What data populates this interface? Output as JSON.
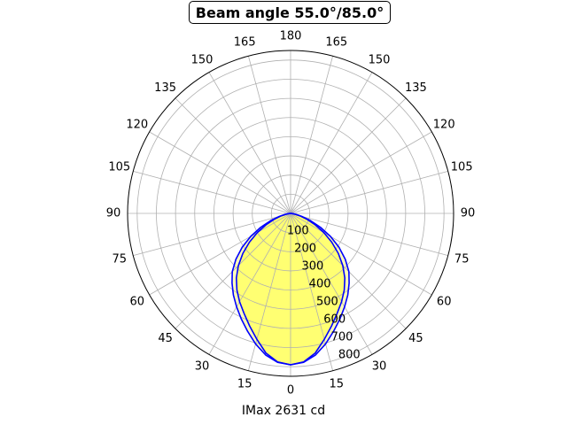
{
  "title": "Beam angle 55.0°/85.0°",
  "xlabel": "IMax 2631 cd",
  "chart_data": {
    "type": "polar",
    "title": "Beam angle 55.0°/85.0°",
    "xlabel": "IMax 2631 cd",
    "angle_unit": "degrees",
    "zero_location": "bottom",
    "angle_labels": [
      "0",
      "15",
      "30",
      "45",
      "60",
      "75",
      "90",
      "105",
      "120",
      "135",
      "150",
      "165",
      "180",
      "165",
      "150",
      "135",
      "120",
      "105",
      "90",
      "75",
      "60",
      "45",
      "30",
      "15"
    ],
    "radial_ticks": [
      100,
      200,
      300,
      400,
      500,
      600,
      700,
      800
    ],
    "rlim": [
      0,
      850
    ],
    "grid": true,
    "series": [
      {
        "color": "#0000ff",
        "fill": "#ffff66",
        "angles": [
          0,
          5,
          10,
          15,
          20,
          25,
          30,
          35,
          40,
          45,
          50,
          55,
          60,
          65,
          70,
          75,
          80,
          85,
          90
        ],
        "values": [
          790,
          778,
          740,
          680,
          625,
          575,
          532,
          488,
          440,
          385,
          325,
          262,
          200,
          142,
          92,
          52,
          22,
          5,
          0
        ]
      },
      {
        "color": "#0000ff",
        "fill": "#ffff66",
        "angles": [
          0,
          5,
          10,
          15,
          20,
          25,
          30,
          35,
          40,
          45,
          50,
          55,
          60,
          65,
          70,
          75,
          80,
          85,
          90
        ],
        "values": [
          790,
          780,
          750,
          705,
          655,
          608,
          563,
          520,
          475,
          430,
          372,
          308,
          240,
          172,
          110,
          60,
          25,
          6,
          0
        ]
      }
    ]
  }
}
